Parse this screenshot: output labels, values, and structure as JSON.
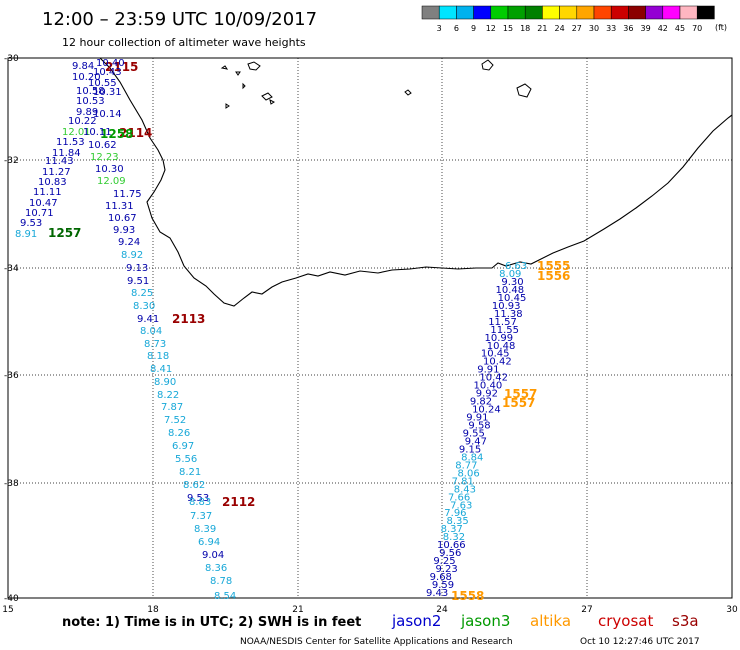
{
  "header": {
    "title": "12:00 – 23:59 UTC 10/09/2017",
    "subtitle": "12 hour collection of altimeter wave heights"
  },
  "scale": {
    "labels": [
      "3",
      "6",
      "9",
      "12",
      "15",
      "18",
      "21",
      "24",
      "27",
      "30",
      "33",
      "36",
      "39",
      "42",
      "45",
      "70"
    ],
    "unit": "(ft)",
    "colors": [
      "#808080",
      "#00e5ff",
      "#00b2ee",
      "#0000ff",
      "#00cc00",
      "#00a000",
      "#008000",
      "#ffff00",
      "#ffd700",
      "#ffa500",
      "#ff4500",
      "#cc0000",
      "#8b0000",
      "#9400d3",
      "#ff00ff",
      "#ffb6c1",
      "#000000"
    ]
  },
  "axes": {
    "x_ticks": [
      "15",
      "18",
      "21",
      "24",
      "27",
      "30"
    ],
    "y_ticks": [
      "-30",
      "-32",
      "-34",
      "-36",
      "-38",
      "-40"
    ],
    "lon_range": [
      15,
      30
    ],
    "lat_range": [
      -40,
      -30
    ]
  },
  "satellite_colors": {
    "jason2": "#0000cc",
    "jason3": "#009900",
    "altika": "#ff9900",
    "cryosat": "#cc0000",
    "s3a": "#990000",
    "heights": {
      "dark": "#0000aa",
      "mid": "#1e90ff",
      "light": "#18a8d8",
      "green": "#33cc33"
    }
  },
  "footer": {
    "note": "note: 1) Time is in UTC; 2) SWH is in feet",
    "legend": [
      "jason2",
      "jason3",
      "altika",
      "cryosat",
      "s3a"
    ],
    "credit": "NOAA/NESDIS Center for Satellite Applications and Research",
    "timestamp": "Oct 10 12:27:46 UTC 2017"
  },
  "passes": [
    {
      "label": "2115",
      "satellite": "cryosat"
    },
    {
      "label": "2114",
      "satellite": "cryosat"
    },
    {
      "label": "1258",
      "satellite": "jason3"
    },
    {
      "label": "1257",
      "satellite": "jason3"
    },
    {
      "label": "2113",
      "satellite": "cryosat"
    },
    {
      "label": "2112",
      "satellite": "cryosat"
    },
    {
      "label": "1555",
      "satellite": "altika"
    },
    {
      "label": "1556",
      "satellite": "altika"
    },
    {
      "label": "1557",
      "satellite": "altika"
    },
    {
      "label": "1557",
      "satellite": "altika"
    },
    {
      "label": "1558",
      "satellite": "altika"
    }
  ],
  "wave_heights": {
    "west_cluster": [
      {
        "v": "9.84",
        "c": "dark"
      },
      {
        "v": "10.40",
        "c": "dark"
      },
      {
        "v": "10.43",
        "c": "dark"
      },
      {
        "v": "10.55",
        "c": "dark"
      },
      {
        "v": "10.20",
        "c": "dark"
      },
      {
        "v": "10.58",
        "c": "dark"
      },
      {
        "v": "10.31",
        "c": "dark"
      },
      {
        "v": "10.53",
        "c": "dark"
      },
      {
        "v": "9.89",
        "c": "dark"
      },
      {
        "v": "10.14",
        "c": "dark"
      },
      {
        "v": "10.22",
        "c": "dark"
      },
      {
        "v": "12.01",
        "c": "green"
      },
      {
        "v": "10.11",
        "c": "dark"
      },
      {
        "v": "10.62",
        "c": "dark"
      },
      {
        "v": "11.53",
        "c": "dark"
      },
      {
        "v": "11.84",
        "c": "dark"
      },
      {
        "v": "12.23",
        "c": "green"
      },
      {
        "v": "11.43",
        "c": "dark"
      },
      {
        "v": "10.30",
        "c": "dark"
      },
      {
        "v": "11.27",
        "c": "dark"
      },
      {
        "v": "12.09",
        "c": "green"
      },
      {
        "v": "10.83",
        "c": "dark"
      },
      {
        "v": "11.11",
        "c": "dark"
      },
      {
        "v": "11.75",
        "c": "dark"
      },
      {
        "v": "10.47",
        "c": "dark"
      },
      {
        "v": "11.31",
        "c": "dark"
      },
      {
        "v": "10.71",
        "c": "dark"
      },
      {
        "v": "10.67",
        "c": "dark"
      },
      {
        "v": "9.53",
        "c": "dark"
      },
      {
        "v": "8.91",
        "c": "light"
      }
    ],
    "track_2113": [
      {
        "v": "9.93",
        "c": "dark"
      },
      {
        "v": "9.24",
        "c": "dark"
      },
      {
        "v": "8.92",
        "c": "light"
      },
      {
        "v": "9.13",
        "c": "dark"
      },
      {
        "v": "9.51",
        "c": "dark"
      },
      {
        "v": "8.25",
        "c": "light"
      },
      {
        "v": "8.30",
        "c": "light"
      },
      {
        "v": "9.41",
        "c": "dark"
      },
      {
        "v": "8.04",
        "c": "light"
      },
      {
        "v": "8.73",
        "c": "light"
      },
      {
        "v": "8.18",
        "c": "light"
      },
      {
        "v": "8.41",
        "c": "light"
      },
      {
        "v": "8.90",
        "c": "light"
      },
      {
        "v": "8.22",
        "c": "light"
      },
      {
        "v": "7.87",
        "c": "light"
      },
      {
        "v": "7.52",
        "c": "light"
      },
      {
        "v": "8.26",
        "c": "light"
      },
      {
        "v": "6.97",
        "c": "light"
      },
      {
        "v": "5.56",
        "c": "light"
      },
      {
        "v": "8.21",
        "c": "light"
      },
      {
        "v": "8.62",
        "c": "light"
      }
    ],
    "track_2112": [
      {
        "v": "9.53",
        "c": "dark"
      },
      {
        "v": "8.83",
        "c": "light"
      },
      {
        "v": "7.37",
        "c": "light"
      },
      {
        "v": "8.39",
        "c": "light"
      },
      {
        "v": "6.94",
        "c": "light"
      },
      {
        "v": "9.04",
        "c": "dark"
      },
      {
        "v": "8.36",
        "c": "light"
      },
      {
        "v": "8.78",
        "c": "light"
      },
      {
        "v": "8.54",
        "c": "light"
      }
    ],
    "altika_track": [
      {
        "v": "6.63",
        "c": "light"
      },
      {
        "v": "8.09",
        "c": "light"
      },
      {
        "v": "9.30",
        "c": "dark"
      },
      {
        "v": "10.48",
        "c": "dark"
      },
      {
        "v": "10.45",
        "c": "dark"
      },
      {
        "v": "10.93",
        "c": "dark"
      },
      {
        "v": "11.38",
        "c": "dark"
      },
      {
        "v": "11.57",
        "c": "dark"
      },
      {
        "v": "11.55",
        "c": "dark"
      },
      {
        "v": "10.99",
        "c": "dark"
      },
      {
        "v": "10.48",
        "c": "dark"
      },
      {
        "v": "10.45",
        "c": "dark"
      },
      {
        "v": "10.42",
        "c": "dark"
      },
      {
        "v": "9.91",
        "c": "dark"
      },
      {
        "v": "10.42",
        "c": "dark"
      },
      {
        "v": "10.40",
        "c": "dark"
      },
      {
        "v": "9.92",
        "c": "dark"
      },
      {
        "v": "9.82",
        "c": "dark"
      },
      {
        "v": "10.24",
        "c": "dark"
      },
      {
        "v": "9.91",
        "c": "dark"
      },
      {
        "v": "9.58",
        "c": "dark"
      },
      {
        "v": "9.55",
        "c": "dark"
      },
      {
        "v": "9.47",
        "c": "dark"
      },
      {
        "v": "9.15",
        "c": "dark"
      },
      {
        "v": "8.84",
        "c": "light"
      },
      {
        "v": "8.77",
        "c": "light"
      },
      {
        "v": "8.06",
        "c": "light"
      },
      {
        "v": "7.81",
        "c": "light"
      },
      {
        "v": "8.43",
        "c": "light"
      },
      {
        "v": "7.66",
        "c": "light"
      },
      {
        "v": "7.63",
        "c": "light"
      },
      {
        "v": "7.96",
        "c": "light"
      },
      {
        "v": "8.35",
        "c": "light"
      },
      {
        "v": "8.37",
        "c": "light"
      },
      {
        "v": "8.32",
        "c": "light"
      },
      {
        "v": "10.66",
        "c": "dark"
      },
      {
        "v": "9.56",
        "c": "dark"
      },
      {
        "v": "9.25",
        "c": "dark"
      },
      {
        "v": "9.23",
        "c": "dark"
      },
      {
        "v": "9.68",
        "c": "dark"
      },
      {
        "v": "9.59",
        "c": "dark"
      },
      {
        "v": "9.43",
        "c": "dark"
      }
    ]
  }
}
